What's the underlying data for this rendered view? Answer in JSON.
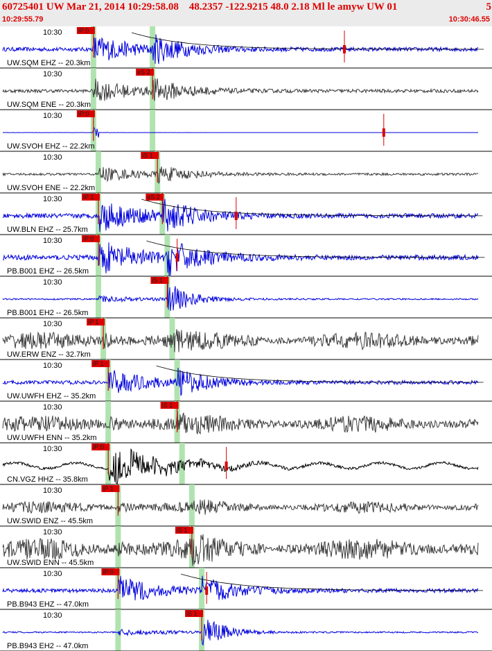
{
  "header": {
    "title": "60725401 UW Mar 21, 2014 10:29:58.08    48.2357 -122.9215 48.0 2.18 Ml le amyw UW 01",
    "title_right": "5",
    "time_start": "10:29:55.79",
    "time_end": "10:30:46.55"
  },
  "colors": {
    "header_bg": "#ebebeb",
    "title": "#dd0000",
    "trace_blue": "#0000dd",
    "trace_gray": "#3c3c3c",
    "trace_black": "#000000",
    "pick": "#dd0000",
    "phase_band": "#a8e0a8"
  },
  "traces": [
    {
      "label": "UW.SQM EHZ -- 20.3km",
      "time": "10:30",
      "color": "blue",
      "p_pick": "iP:0",
      "s_pick": "",
      "p_t": 0.19,
      "s_t": 0.31,
      "amp": 0.6,
      "style": "quake",
      "extra_mark": 0.7
    },
    {
      "label": "UW.SQM ENE -- 20.3km",
      "time": "10:30",
      "color": "gray",
      "p_pick": "",
      "s_pick": "eS 2",
      "p_t": 0.19,
      "s_t": 0.31,
      "amp": 0.5,
      "style": "quake",
      "extra_mark": -1
    },
    {
      "label": "UW.SVOH EHZ -- 22.2km",
      "time": "10:30",
      "color": "blue",
      "p_pick": "iP:0",
      "s_pick": "",
      "p_t": 0.19,
      "s_t": 0.31,
      "amp": 0.2,
      "style": "flat",
      "extra_mark": 0.78
    },
    {
      "label": "UW.SVOH ENE -- 22.2km",
      "time": "10:30",
      "color": "gray",
      "p_pick": "",
      "s_pick": "iS 1",
      "p_t": 0.2,
      "s_t": 0.32,
      "amp": 0.35,
      "style": "quake",
      "extra_mark": -1
    },
    {
      "label": "UW.BLN EHZ -- 25.7km",
      "time": "10:30",
      "color": "blue",
      "p_pick": "iP 1",
      "s_pick": "eS 2",
      "p_t": 0.2,
      "s_t": 0.33,
      "amp": 0.7,
      "style": "quake",
      "extra_mark": 0.48
    },
    {
      "label": "PB.B001 EHZ -- 26.5km",
      "time": "10:30",
      "color": "blue",
      "p_pick": "iP:0",
      "s_pick": "",
      "p_t": 0.2,
      "s_t": 0.34,
      "amp": 0.75,
      "style": "quake",
      "extra_mark": 0.36
    },
    {
      "label": "PB.B001 EH2 -- 26.5km",
      "time": "10:30",
      "color": "blue",
      "p_pick": "",
      "s_pick": "iS 1",
      "p_t": 0.2,
      "s_t": 0.34,
      "amp": 0.6,
      "style": "squake",
      "extra_mark": -1
    },
    {
      "label": "UW.ERW ENZ -- 32.7km",
      "time": "10:30",
      "color": "gray",
      "p_pick": "iP 1",
      "s_pick": "",
      "p_t": 0.21,
      "s_t": 0.35,
      "amp": 0.45,
      "style": "noisy",
      "extra_mark": -1
    },
    {
      "label": "UW.UWFH EHZ -- 35.2km",
      "time": "10:30",
      "color": "blue",
      "p_pick": "iP 1",
      "s_pick": "",
      "p_t": 0.22,
      "s_t": 0.36,
      "amp": 0.55,
      "style": "quake",
      "extra_mark": -1
    },
    {
      "label": "UW.UWFH ENN -- 35.2km",
      "time": "10:30",
      "color": "gray",
      "p_pick": "",
      "s_pick": "iS 1",
      "p_t": 0.22,
      "s_t": 0.36,
      "amp": 0.45,
      "style": "noisy",
      "extra_mark": -1
    },
    {
      "label": "CN.VGZ HHZ -- 35.8km",
      "time": "10:30",
      "color": "black",
      "p_pick": "iP:0",
      "s_pick": "",
      "p_t": 0.22,
      "s_t": 0.37,
      "amp": 0.8,
      "style": "longwave",
      "extra_mark": 0.46
    },
    {
      "label": "UW.SWID ENZ -- 45.5km",
      "time": "10:30",
      "color": "gray",
      "p_pick": "iP 1",
      "s_pick": "",
      "p_t": 0.24,
      "s_t": 0.39,
      "amp": 0.3,
      "style": "noisy",
      "extra_mark": -1
    },
    {
      "label": "UW.SWID ENN -- 45.5km",
      "time": "10:30",
      "color": "gray",
      "p_pick": "",
      "s_pick": "iS 1",
      "p_t": 0.24,
      "s_t": 0.39,
      "amp": 0.55,
      "style": "noisy",
      "extra_mark": -1
    },
    {
      "label": "PB.B943 EHZ -- 47.0km",
      "time": "10:30",
      "color": "blue",
      "p_pick": "iP:0",
      "s_pick": "",
      "p_t": 0.24,
      "s_t": 0.41,
      "amp": 0.6,
      "style": "quake",
      "extra_mark": 0.42
    },
    {
      "label": "PB.B943 EH2 -- 47.0km",
      "time": "10:30",
      "color": "blue",
      "p_pick": "",
      "s_pick": "iS 1",
      "p_t": 0.24,
      "s_t": 0.41,
      "amp": 0.6,
      "style": "squake",
      "extra_mark": -1
    }
  ]
}
